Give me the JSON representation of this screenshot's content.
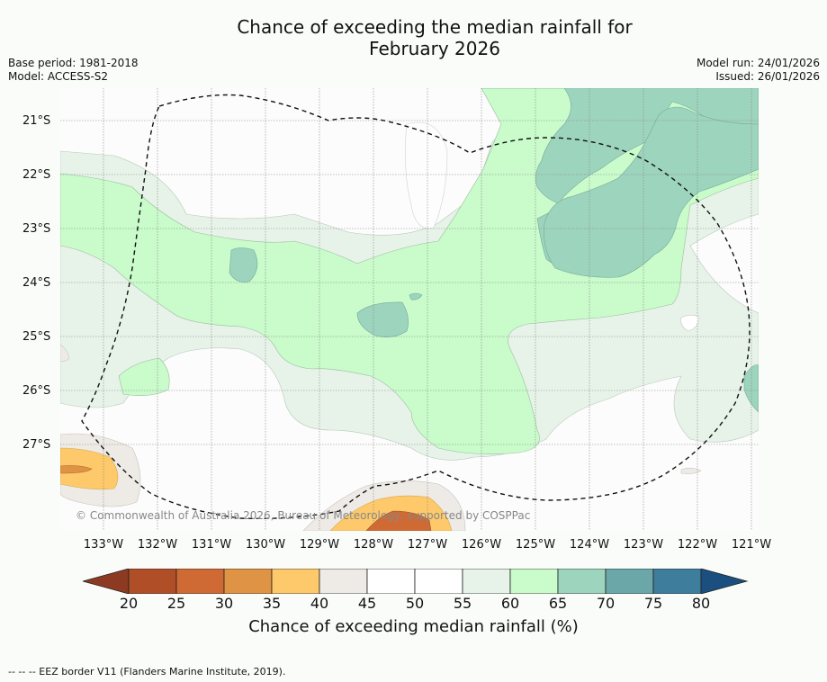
{
  "title_line1": "Chance of exceeding the median rainfall for",
  "title_line2": "February 2026",
  "meta": {
    "base_period": "Base period: 1981-2018",
    "model": "Model: ACCESS-S2",
    "model_run": "Model run: 24/01/2026",
    "issued": "Issued: 26/01/2026"
  },
  "latitudes": [
    "21°S",
    "22°S",
    "23°S",
    "24°S",
    "25°S",
    "26°S",
    "27°S"
  ],
  "longitudes": [
    "133°W",
    "132°W",
    "131°W",
    "130°W",
    "129°W",
    "128°W",
    "127°W",
    "126°W",
    "125°W",
    "124°W",
    "123°W",
    "122°W",
    "121°W"
  ],
  "copyright": "© Commonwealth of Australia 2026, Bureau of Meteorology, supported by COSPPac",
  "colorbar": {
    "ticks": [
      "20",
      "25",
      "30",
      "35",
      "40",
      "45",
      "50",
      "55",
      "60",
      "65",
      "70",
      "75",
      "80"
    ],
    "colors": [
      "#8c3b22",
      "#b04e28",
      "#cf6a34",
      "#df9344",
      "#fdc96a",
      "#eeeae6",
      "#ffffff",
      "#ffffff",
      "#e7f3e8",
      "#c9fbcb",
      "#9dd4bd",
      "#6ba6a8",
      "#3f7d9c",
      "#1a4f80"
    ],
    "label": "Chance of exceeding median rainfall (%)"
  },
  "footnote": "--  --  -- EEZ border V11 (Flanders Marine Institute, 2019)."
}
